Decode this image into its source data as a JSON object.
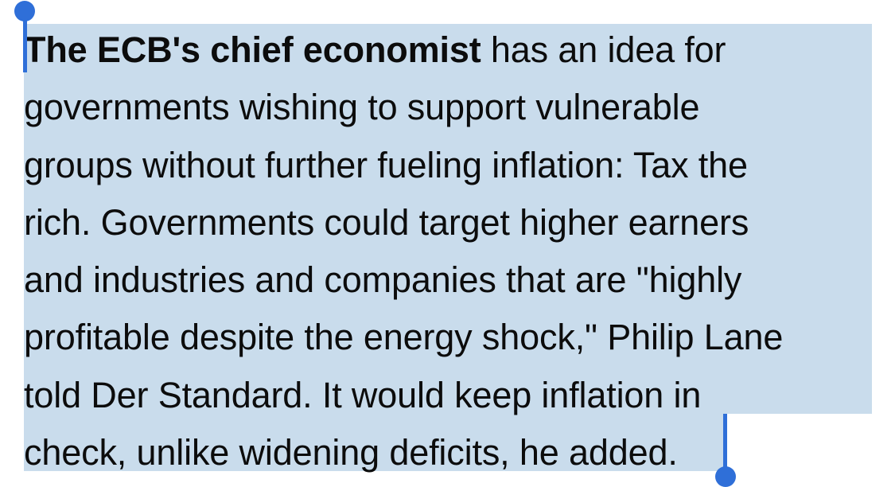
{
  "selection": {
    "highlight_color": "#c9dcec",
    "handle_color": "#2f6fd8",
    "text_color": "#0c0c0c"
  },
  "article": {
    "lede": "The ECB's chief economist",
    "lines": [
      " has an idea for",
      "governments wishing to support vulnerable",
      "groups without further fueling inflation: Tax the",
      "rich. Governments could target higher earners",
      "and industries and companies that are \"highly",
      "profitable despite the energy shock,\" Philip Lane",
      "told Der Standard. It would keep inflation in",
      "check, unlike widening deficits, he added."
    ]
  }
}
